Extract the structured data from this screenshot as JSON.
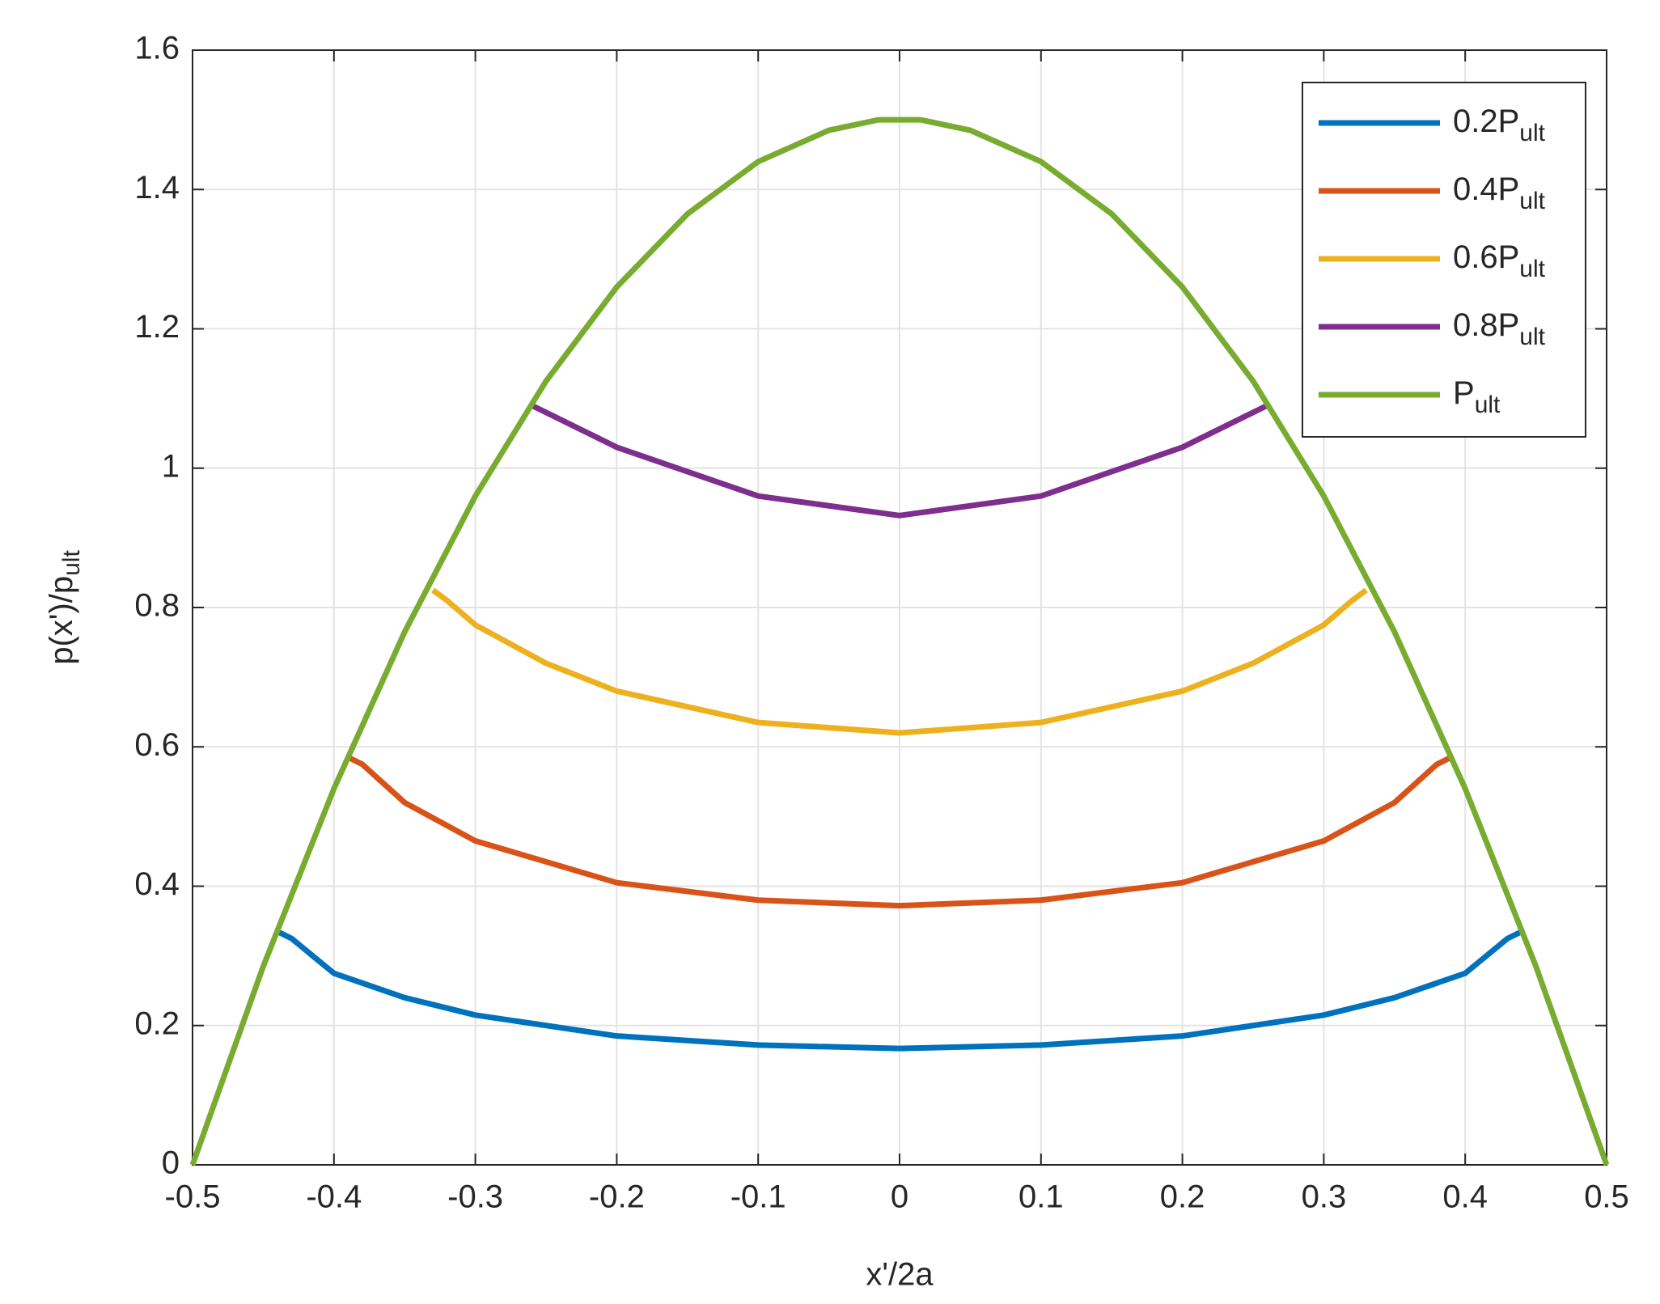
{
  "chart_data": {
    "type": "line",
    "xlabel": "x'/2a",
    "ylabel": "p(x')/p",
    "ylabel_subscript": "ult",
    "xlim": [
      -0.5,
      0.5
    ],
    "xticks": [
      -0.5,
      -0.4,
      -0.3,
      -0.2,
      -0.1,
      0,
      0.1,
      0.2,
      0.3,
      0.4,
      0.5
    ],
    "ylim": [
      0,
      1.6
    ],
    "yticks": [
      0,
      0.2,
      0.4,
      0.6,
      0.8,
      1,
      1.2,
      1.4,
      1.6
    ],
    "grid": true,
    "legend": "upper right",
    "series": [
      {
        "name": "0.2P",
        "name_subscript": "ult",
        "color": "#0072bd",
        "x": [
          -0.44,
          -0.43,
          -0.4,
          -0.35,
          -0.3,
          -0.2,
          -0.1,
          0,
          0.1,
          0.2,
          0.3,
          0.35,
          0.4,
          0.43,
          0.44
        ],
        "values": [
          0.335,
          0.325,
          0.275,
          0.24,
          0.215,
          0.185,
          0.172,
          0.167,
          0.172,
          0.185,
          0.215,
          0.24,
          0.275,
          0.325,
          0.335
        ]
      },
      {
        "name": "0.4P",
        "name_subscript": "ult",
        "color": "#d95319",
        "x": [
          -0.39,
          -0.38,
          -0.35,
          -0.3,
          -0.2,
          -0.1,
          0,
          0.1,
          0.2,
          0.3,
          0.35,
          0.38,
          0.39
        ],
        "values": [
          0.585,
          0.575,
          0.52,
          0.465,
          0.405,
          0.38,
          0.372,
          0.38,
          0.405,
          0.465,
          0.52,
          0.575,
          0.585
        ]
      },
      {
        "name": "0.6P",
        "name_subscript": "ult",
        "color": "#edb120",
        "x": [
          -0.33,
          -0.32,
          -0.3,
          -0.25,
          -0.2,
          -0.1,
          0,
          0.1,
          0.2,
          0.25,
          0.3,
          0.32,
          0.33
        ],
        "values": [
          0.825,
          0.81,
          0.775,
          0.72,
          0.68,
          0.635,
          0.62,
          0.635,
          0.68,
          0.72,
          0.775,
          0.81,
          0.825
        ]
      },
      {
        "name": "0.8P",
        "name_subscript": "ult",
        "color": "#7e2f8e",
        "x": [
          -0.26,
          -0.2,
          -0.1,
          0,
          0.1,
          0.2,
          0.26
        ],
        "values": [
          1.09,
          1.03,
          0.96,
          0.932,
          0.96,
          1.03,
          1.09
        ]
      },
      {
        "name": "P",
        "name_subscript": "ult",
        "color": "#77ac30",
        "x": [
          -0.5,
          -0.45,
          -0.4,
          -0.35,
          -0.3,
          -0.25,
          -0.2,
          -0.15,
          -0.1,
          -0.05,
          -0.015,
          0.015,
          0.05,
          0.1,
          0.15,
          0.2,
          0.25,
          0.3,
          0.35,
          0.4,
          0.45,
          0.5
        ],
        "values": [
          0,
          0.285,
          0.54,
          0.765,
          0.96,
          1.125,
          1.26,
          1.365,
          1.44,
          1.485,
          1.5,
          1.5,
          1.485,
          1.44,
          1.365,
          1.26,
          1.125,
          0.96,
          0.765,
          0.54,
          0.285,
          0
        ]
      }
    ]
  }
}
